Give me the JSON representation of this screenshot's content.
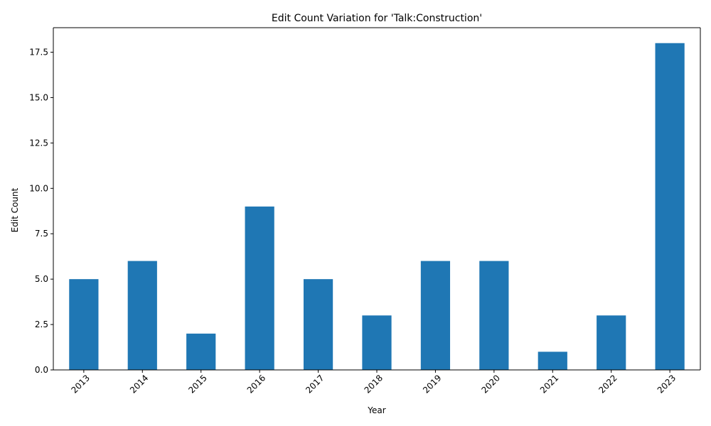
{
  "chart_data": {
    "type": "bar",
    "title": "Edit Count Variation for 'Talk:Construction'",
    "xlabel": "Year",
    "ylabel": "Edit Count",
    "categories": [
      "2013",
      "2014",
      "2015",
      "2016",
      "2017",
      "2018",
      "2019",
      "2020",
      "2021",
      "2022",
      "2023"
    ],
    "values": [
      5,
      6,
      2,
      9,
      5,
      3,
      6,
      6,
      1,
      3,
      18
    ],
    "ylim": [
      0,
      18.85
    ],
    "yticks": [
      "0.0",
      "2.5",
      "5.0",
      "7.5",
      "10.0",
      "12.5",
      "15.0",
      "17.5"
    ],
    "bar_color": "#1f77b4",
    "grid": false,
    "legend": "none"
  }
}
